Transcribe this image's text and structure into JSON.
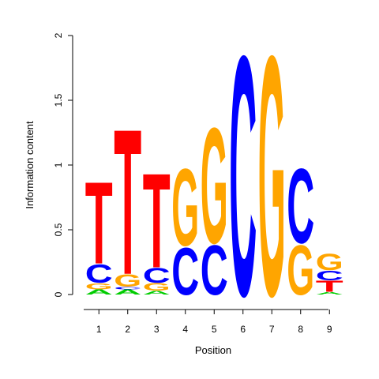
{
  "chart_data": {
    "type": "sequence_logo",
    "title": "",
    "xlabel": "Position",
    "ylabel": "Information content",
    "ylim": [
      0,
      2
    ],
    "yticks": [
      "0",
      "0.5",
      "1",
      "1.5",
      "2"
    ],
    "yticks_values": [
      0,
      0.5,
      1,
      1.5,
      2
    ],
    "positions": [
      "1",
      "2",
      "3",
      "4",
      "5",
      "6",
      "7",
      "8",
      "9"
    ],
    "colors": {
      "A": "#00cc00",
      "C": "#0000ff",
      "G": "#ffa500",
      "T": "#ff0000"
    },
    "stacks": [
      [
        {
          "letter": "A",
          "height": 0.04
        },
        {
          "letter": "G",
          "height": 0.05
        },
        {
          "letter": "C",
          "height": 0.15
        },
        {
          "letter": "T",
          "height": 0.66
        }
      ],
      [
        {
          "letter": "A",
          "height": 0.04
        },
        {
          "letter": "C",
          "height": 0.02
        },
        {
          "letter": "G",
          "height": 0.1
        },
        {
          "letter": "T",
          "height": 1.17
        }
      ],
      [
        {
          "letter": "A",
          "height": 0.03
        },
        {
          "letter": "G",
          "height": 0.06
        },
        {
          "letter": "C",
          "height": 0.12
        },
        {
          "letter": "T",
          "height": 0.76
        }
      ],
      [
        {
          "letter": "C",
          "height": 0.38
        },
        {
          "letter": "G",
          "height": 0.62
        }
      ],
      [
        {
          "letter": "C",
          "height": 0.4
        },
        {
          "letter": "G",
          "height": 0.93
        }
      ],
      [
        {
          "letter": "C",
          "height": 1.93
        }
      ],
      [
        {
          "letter": "G",
          "height": 1.93
        }
      ],
      [
        {
          "letter": "G",
          "height": 0.4
        },
        {
          "letter": "C",
          "height": 0.6
        }
      ],
      [
        {
          "letter": "A",
          "height": 0.02
        },
        {
          "letter": "T",
          "height": 0.09
        },
        {
          "letter": "C",
          "height": 0.08
        },
        {
          "letter": "G",
          "height": 0.13
        }
      ]
    ]
  }
}
